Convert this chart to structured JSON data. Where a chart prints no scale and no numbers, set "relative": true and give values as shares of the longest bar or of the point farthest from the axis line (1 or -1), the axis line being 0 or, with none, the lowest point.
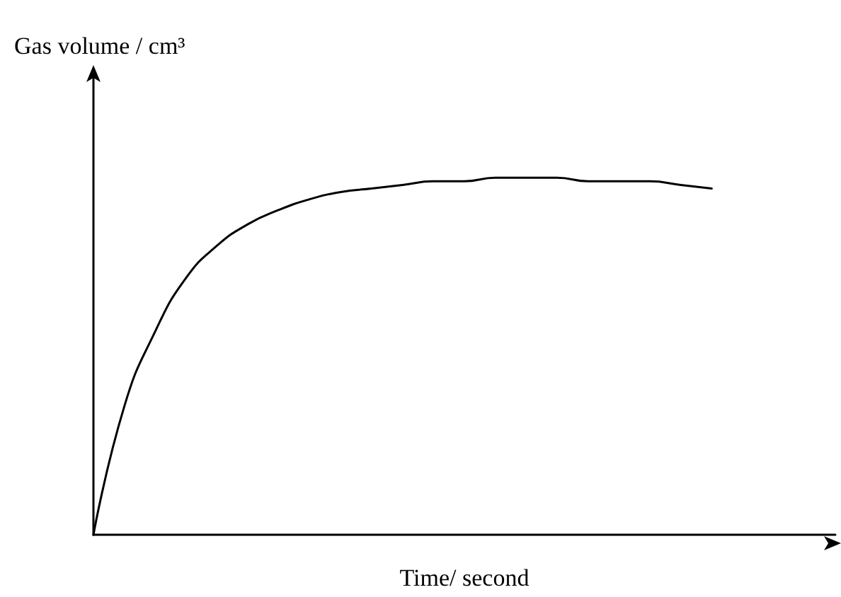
{
  "chart_data": {
    "type": "line",
    "relative": true,
    "xlabel": "Time/ second",
    "ylabel": "Gas volume / cm³",
    "categories": [
      null,
      null,
      null,
      null,
      null,
      null,
      null,
      null,
      null,
      null,
      null,
      null,
      null,
      null,
      null,
      null,
      null,
      null,
      null,
      null,
      null,
      null,
      null,
      null,
      null
    ],
    "series": [
      {
        "color": "#000000",
        "values": [
          0,
          0.36,
          0.57,
          0.72,
          0.81,
          0.87,
          0.91,
          0.94,
          0.96,
          0.97,
          0.98,
          0.99,
          0.99,
          1,
          1,
          1,
          0.99,
          0.99,
          0.99,
          0.98,
          0.97,
          null,
          null,
          null,
          null
        ]
      }
    ],
    "tick_labels": false,
    "marker": "none",
    "line_style": "solid"
  }
}
